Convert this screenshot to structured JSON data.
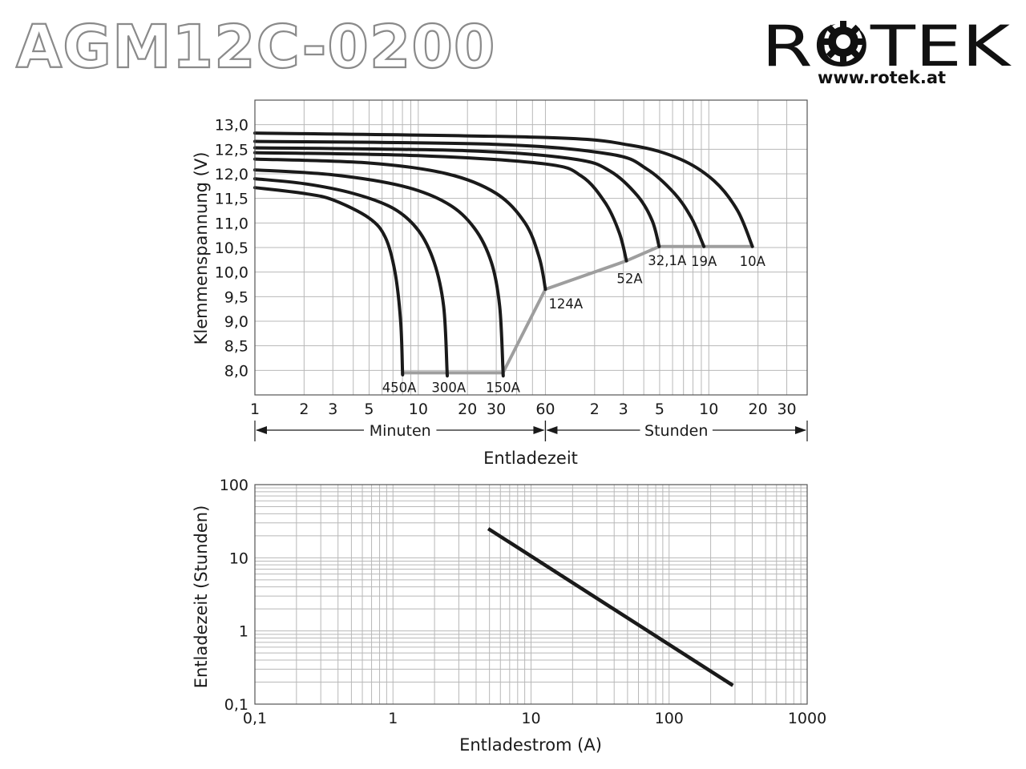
{
  "header": {
    "title": "AGM12C-0200",
    "brand": "ROTEK",
    "url": "www.rotek.at"
  },
  "colors": {
    "curve": "#1a1a1a",
    "cutoff_line": "#9e9e9e",
    "grid": "#b8b8b8",
    "title_outline": "#8a8a8a"
  },
  "chart_data": [
    {
      "type": "line",
      "title": "",
      "xlabel": "Entladezeit",
      "ylabel": "Klemmenspannung (V)",
      "x_scale": "log",
      "x_unit": "minutes",
      "xlim": [
        1,
        2400
      ],
      "ylim": [
        7.5,
        13.5
      ],
      "grid": true,
      "x_ticks": [
        "1",
        "2",
        "3",
        "5",
        "10",
        "20",
        "30",
        "60",
        "2",
        "3",
        "5",
        "10",
        "20",
        "30"
      ],
      "y_ticks": [
        "8,0",
        "8,5",
        "9,0",
        "9,5",
        "10,0",
        "10,5",
        "11,0",
        "11,5",
        "12,0",
        "12,5",
        "13,0"
      ],
      "x_ranges": [
        {
          "label": "Minuten",
          "from": 1,
          "to": 60
        },
        {
          "label": "Stunden",
          "from": 60,
          "to": 2400
        }
      ],
      "series": [
        {
          "name": "450A",
          "end_label_pos": "below",
          "points": [
            [
              1,
              11.72
            ],
            [
              2,
              11.6
            ],
            [
              3,
              11.47
            ],
            [
              5,
              11.1
            ],
            [
              6.3,
              10.7
            ],
            [
              7.2,
              10.0
            ],
            [
              7.8,
              9.0
            ],
            [
              8,
              8.0
            ],
            [
              8,
              7.95
            ]
          ]
        },
        {
          "name": "300A",
          "end_label_pos": "below",
          "points": [
            [
              1,
              11.9
            ],
            [
              2,
              11.8
            ],
            [
              4,
              11.6
            ],
            [
              7,
              11.3
            ],
            [
              10,
              10.85
            ],
            [
              12.5,
              10.2
            ],
            [
              14.3,
              9.3
            ],
            [
              15,
              8.0
            ],
            [
              15,
              7.95
            ]
          ]
        },
        {
          "name": "150A",
          "end_label_pos": "below",
          "points": [
            [
              1,
              12.08
            ],
            [
              3,
              11.98
            ],
            [
              8,
              11.75
            ],
            [
              15,
              11.4
            ],
            [
              22,
              10.9
            ],
            [
              28,
              10.2
            ],
            [
              31.5,
              9.3
            ],
            [
              33,
              8.0
            ],
            [
              33,
              7.95
            ]
          ]
        },
        {
          "name": "124A",
          "end_label_pos": "right",
          "points": [
            [
              1,
              12.3
            ],
            [
              5,
              12.22
            ],
            [
              15,
              12.0
            ],
            [
              30,
              11.6
            ],
            [
              45,
              11.0
            ],
            [
              55,
              10.3
            ],
            [
              60,
              9.65
            ]
          ]
        },
        {
          "name": "52A",
          "end_label_pos": "below",
          "points": [
            [
              1,
              12.43
            ],
            [
              10,
              12.37
            ],
            [
              60,
              12.2
            ],
            [
              100,
              11.95
            ],
            [
              140,
              11.4
            ],
            [
              170,
              10.8
            ],
            [
              188,
              10.23
            ]
          ]
        },
        {
          "name": "32,1A",
          "end_label_pos": "below",
          "points": [
            [
              1,
              12.53
            ],
            [
              20,
              12.47
            ],
            [
              90,
              12.3
            ],
            [
              150,
              12.05
            ],
            [
              220,
              11.55
            ],
            [
              270,
              11.05
            ],
            [
              298,
              10.52
            ]
          ]
        },
        {
          "name": "19A",
          "end_label_pos": "below",
          "points": [
            [
              1,
              12.66
            ],
            [
              30,
              12.6
            ],
            [
              150,
              12.4
            ],
            [
              250,
              12.1
            ],
            [
              370,
              11.6
            ],
            [
              470,
              11.1
            ],
            [
              560,
              10.52
            ]
          ]
        },
        {
          "name": "10A",
          "end_label_pos": "below",
          "points": [
            [
              1,
              12.83
            ],
            [
              60,
              12.74
            ],
            [
              200,
              12.58
            ],
            [
              400,
              12.3
            ],
            [
              650,
              11.85
            ],
            [
              900,
              11.25
            ],
            [
              1110,
              10.52
            ]
          ]
        }
      ],
      "cutoff_line": [
        [
          8,
          7.95
        ],
        [
          33,
          7.95
        ],
        [
          60,
          9.65
        ],
        [
          188,
          10.23
        ],
        [
          298,
          10.52
        ],
        [
          1110,
          10.52
        ]
      ]
    },
    {
      "type": "line",
      "title": "",
      "xlabel": "Entladestrom (A)",
      "ylabel": "Entladezeit (Stunden)",
      "x_scale": "log",
      "y_scale": "log",
      "xlim": [
        0.1,
        1000
      ],
      "ylim": [
        0.1,
        100
      ],
      "grid": true,
      "x_ticks": [
        "0,1",
        "1",
        "10",
        "100",
        "1000"
      ],
      "y_ticks": [
        "0,1",
        "1",
        "10",
        "100"
      ],
      "series": [
        {
          "points": [
            [
              4.9,
              25
            ],
            [
              290,
              0.18
            ]
          ]
        }
      ]
    }
  ]
}
